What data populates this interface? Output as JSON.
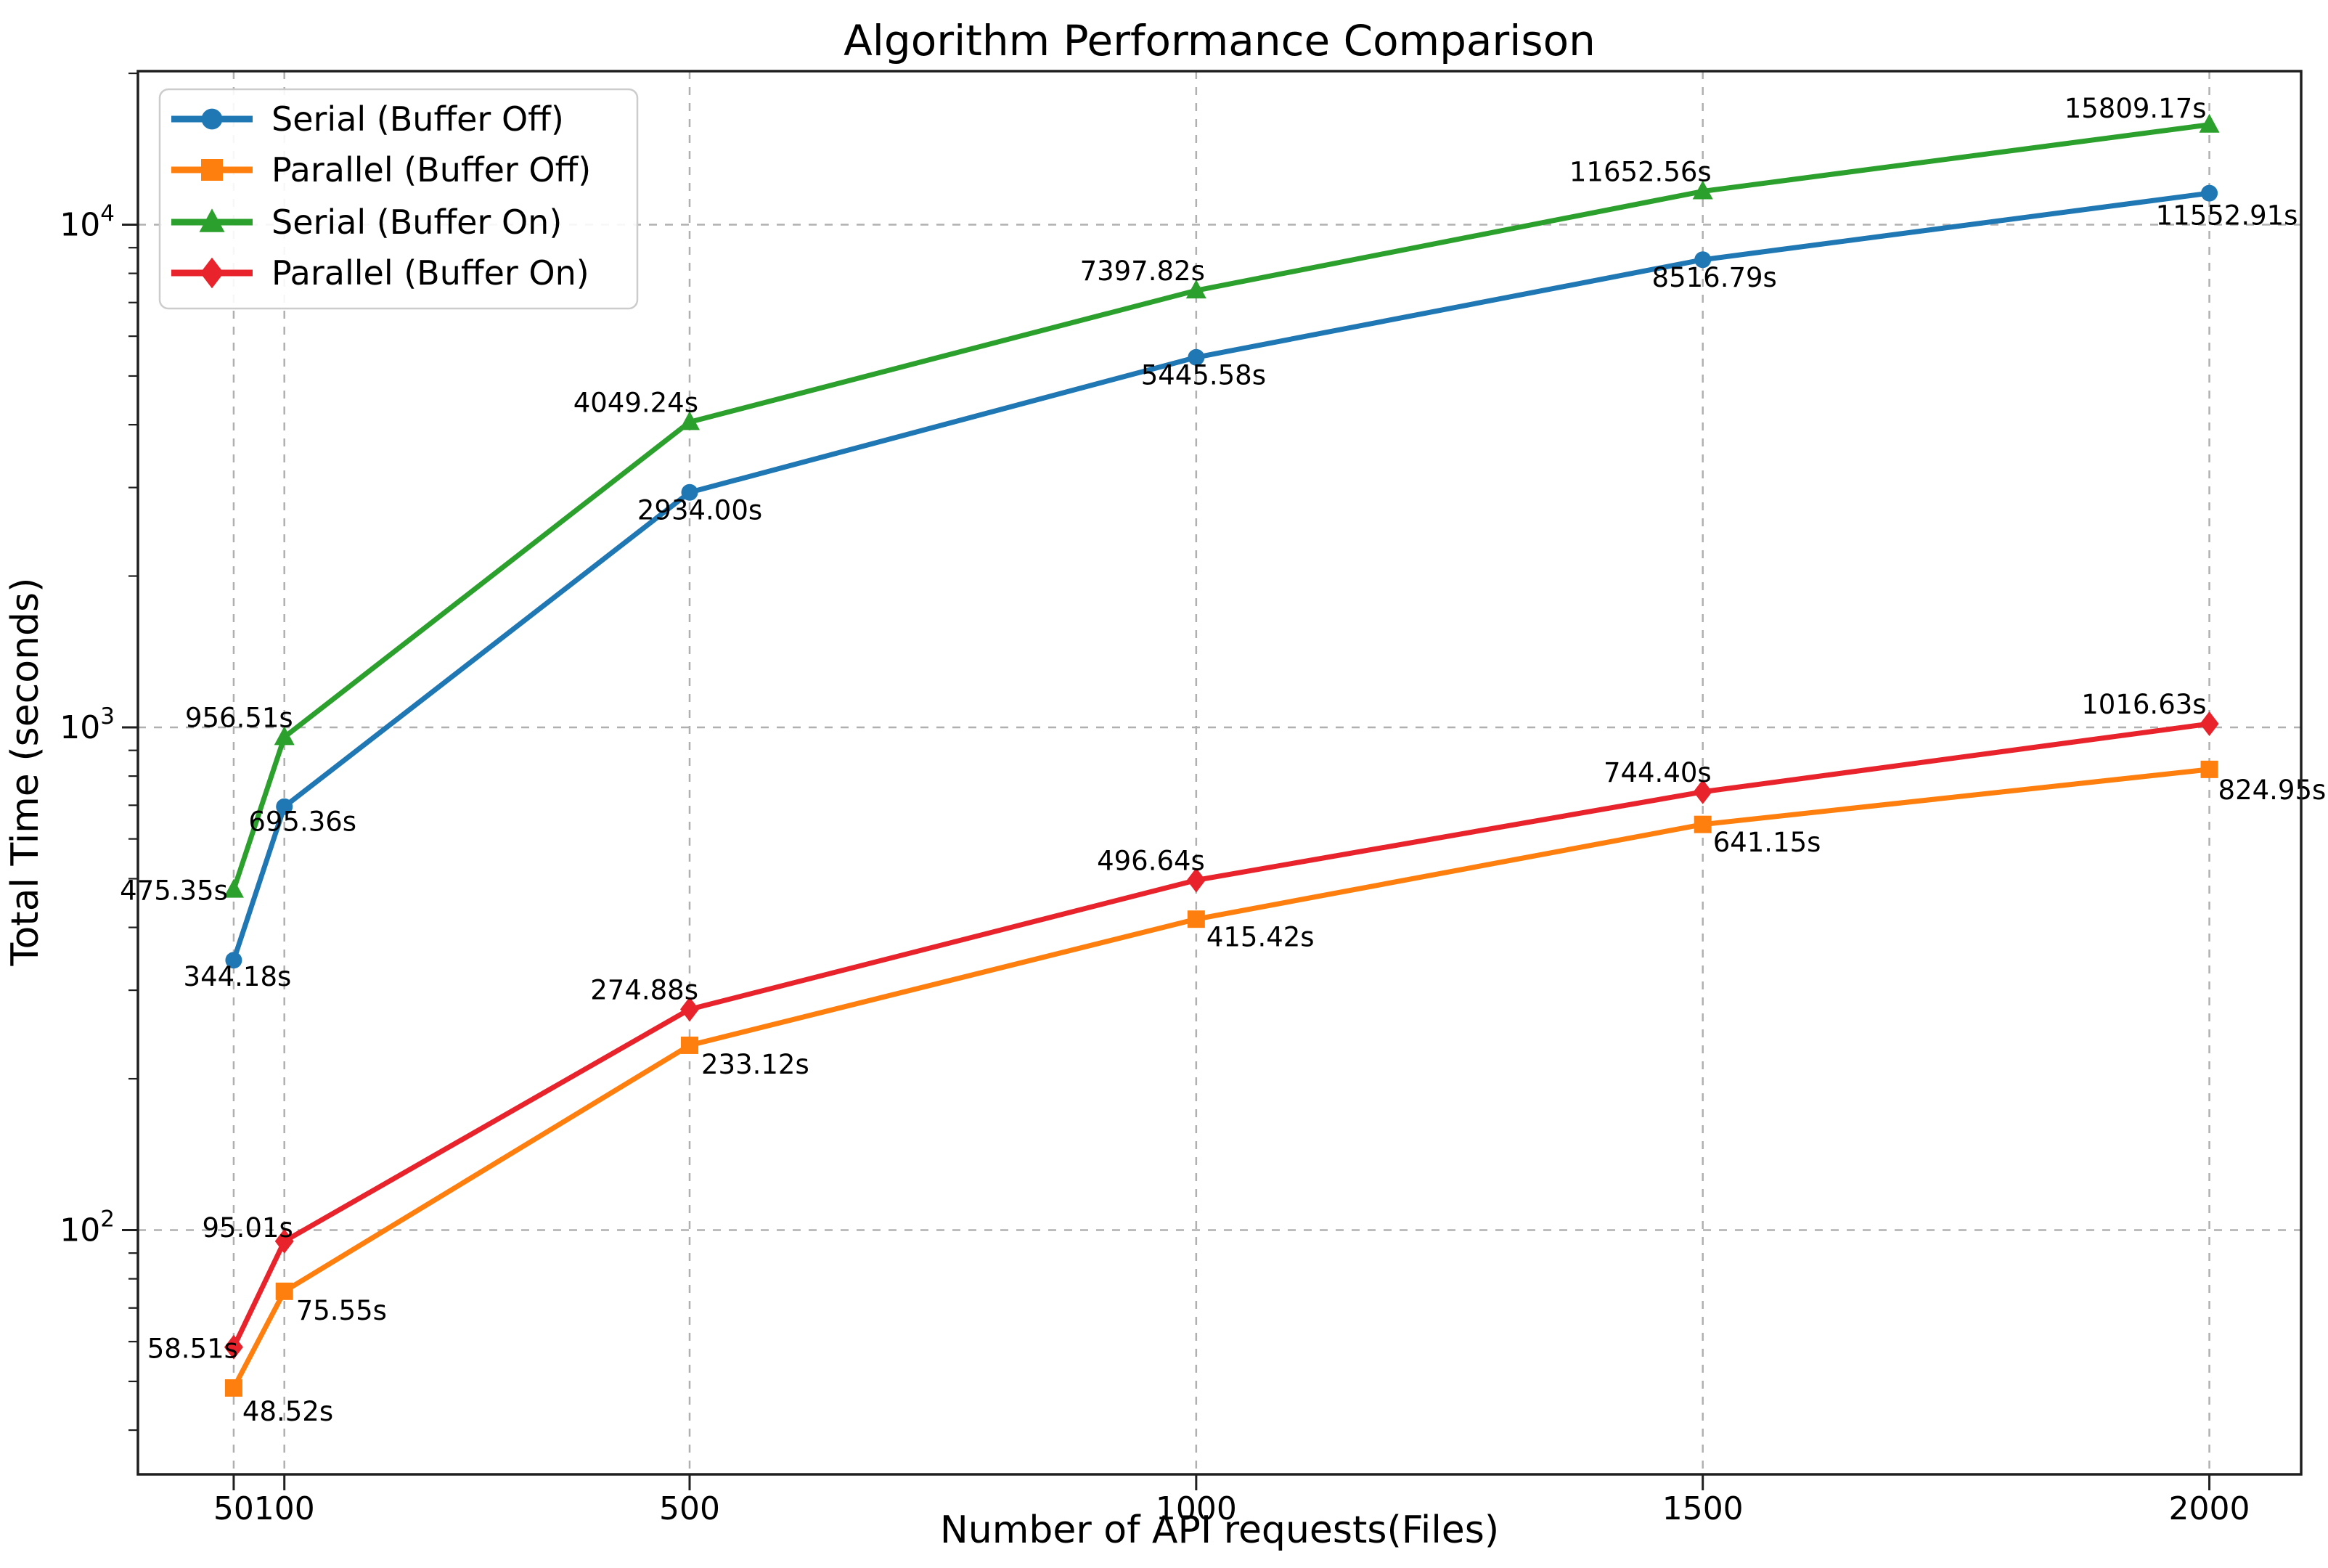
{
  "figure": {
    "background": "#ffffff",
    "spine_color": "#1f1f1f",
    "grid_color": "#b0b0b0",
    "text_color": "#000000"
  },
  "chart_data": {
    "type": "line",
    "title": "Algorithm Performance Comparison",
    "xlabel": "Number of API requests(Files)",
    "ylabel": "Total Time (seconds)",
    "x": [
      50,
      100,
      500,
      1000,
      1500,
      2000
    ],
    "x_tick_labels": [
      "50",
      "100",
      "500",
      "1000",
      "1500",
      "2000"
    ],
    "y_scale": "log",
    "y_major_ticks": [
      100,
      1000,
      10000
    ],
    "y_tick_exponents": [
      "2",
      "3",
      "4"
    ],
    "y_minor_ticks": [
      40,
      50,
      60,
      70,
      80,
      90,
      200,
      300,
      400,
      500,
      600,
      700,
      800,
      900,
      2000,
      3000,
      4000,
      5000,
      6000,
      7000,
      8000,
      9000,
      20000
    ],
    "xlim": [
      -45,
      2090
    ],
    "ylim": [
      32.7,
      20400
    ],
    "grid": "dashed",
    "legend_position": "upper left",
    "series": [
      {
        "name": "Serial (Buffer Off)",
        "color": "#1f77b4",
        "marker": "circle",
        "values": [
          344.18,
          695.36,
          2934.0,
          5445.58,
          8516.79,
          11552.91
        ],
        "labels": [
          "344.18s",
          "695.36s",
          "2934.00s",
          "5445.58s",
          "8516.79s",
          "11552.91s"
        ]
      },
      {
        "name": "Parallel (Buffer Off)",
        "color": "#ff7f0e",
        "marker": "square",
        "values": [
          48.52,
          75.55,
          233.12,
          415.42,
          641.15,
          824.95
        ],
        "labels": [
          "48.52s",
          "75.55s",
          "233.12s",
          "415.42s",
          "641.15s",
          "824.95s"
        ]
      },
      {
        "name": "Serial (Buffer On)",
        "color": "#2ca02c",
        "marker": "triangle-up",
        "values": [
          475.35,
          956.51,
          4049.24,
          7397.82,
          11652.56,
          15809.17
        ],
        "labels": [
          "475.35s",
          "956.51s",
          "4049.24s",
          "7397.82s",
          "11652.56s",
          "15809.17s"
        ]
      },
      {
        "name": "Parallel (Buffer On)",
        "color": "#e8232b",
        "marker": "diamond",
        "values": [
          58.51,
          95.01,
          274.88,
          496.64,
          744.4,
          1016.63
        ],
        "labels": [
          "58.51s",
          "95.01s",
          "274.88s",
          "496.64s",
          "744.40s",
          "1016.63s"
        ]
      }
    ]
  }
}
